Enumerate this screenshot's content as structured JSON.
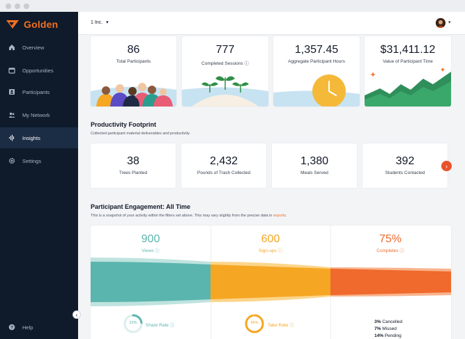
{
  "brand": {
    "name": "Golden",
    "accent": "#f36f21"
  },
  "topbar": {
    "org": "1 Inc.",
    "caret": "▾"
  },
  "sidebar": {
    "items": [
      {
        "label": "Overview",
        "icon": "home-icon"
      },
      {
        "label": "Opportunities",
        "icon": "calendar-icon"
      },
      {
        "label": "Participants",
        "icon": "id-card-icon"
      },
      {
        "label": "My Network",
        "icon": "people-icon"
      },
      {
        "label": "Insights",
        "icon": "waveform-icon",
        "active": true
      },
      {
        "label": "Settings",
        "icon": "gear-icon"
      }
    ],
    "help": "Help"
  },
  "stats": [
    {
      "value": "86",
      "label": "Total Participants"
    },
    {
      "value": "777",
      "label": "Completed Sessions"
    },
    {
      "value": "1,357.45",
      "label": "Aggregate Participant Hours"
    },
    {
      "value": "$31,411.12",
      "label": "Value of Participant Time"
    }
  ],
  "footprint": {
    "title": "Productivity Footprint",
    "subtitle": "Collected participant material deliverables and productivity.",
    "items": [
      {
        "value": "38",
        "label": "Trees Planted"
      },
      {
        "value": "2,432",
        "label": "Pounds of Trash Collected"
      },
      {
        "value": "1,380",
        "label": "Meals Served"
      },
      {
        "value": "392",
        "label": "Students Contacted"
      }
    ]
  },
  "engagement": {
    "title": "Participant Engagement: All Time",
    "subtitle_pre": "This is a snapshot of your activity within the filters set above. This may vary slightly from the precise data in ",
    "subtitle_link": "exports",
    "subtitle_post": ".",
    "columns": [
      {
        "value": "900",
        "label": "Views",
        "color": "#5ab5ae"
      },
      {
        "value": "600",
        "label": "Sign-ups",
        "color": "#f5a623"
      },
      {
        "value": "75%",
        "label": "Completes",
        "color": "#ef6a2c"
      }
    ],
    "share_rate": {
      "value": "23%",
      "label": "Share Rate",
      "fraction": 0.23
    },
    "take_rate": {
      "value": "95%",
      "label": "Take Rate",
      "fraction": 0.95
    },
    "breakdown": [
      {
        "pct": "3%",
        "label": "Cancelled"
      },
      {
        "pct": "7%",
        "label": "Missed"
      },
      {
        "pct": "14%",
        "label": "Pending"
      }
    ]
  }
}
